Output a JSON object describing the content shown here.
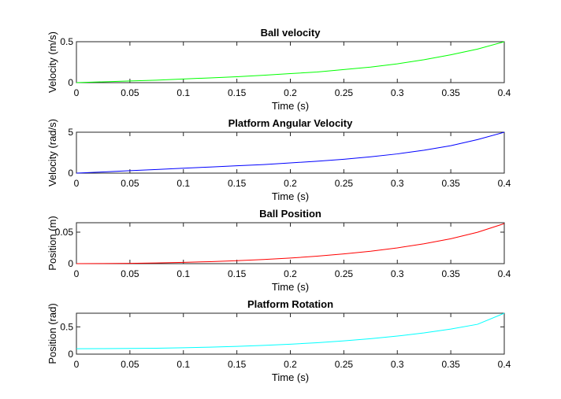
{
  "chart_data": [
    {
      "type": "line",
      "title": "Ball velocity",
      "xlabel": "Time (s)",
      "ylabel": "Velocity (m/s)",
      "xlim": [
        0,
        0.4
      ],
      "ylim": [
        0,
        0.5
      ],
      "xticks": [
        "0",
        "0.05",
        "0.1",
        "0.15",
        "0.2",
        "0.25",
        "0.3",
        "0.35",
        "0.4"
      ],
      "yticks": [
        "0",
        "0.5"
      ],
      "grid": false,
      "series": [
        {
          "color": "#00ff00",
          "x": [
            0,
            0.025,
            0.05,
            0.075,
            0.1,
            0.125,
            0.15,
            0.175,
            0.2,
            0.225,
            0.25,
            0.275,
            0.3,
            0.325,
            0.35,
            0.375,
            0.4
          ],
          "y": [
            0,
            0.01,
            0.02,
            0.03,
            0.045,
            0.058,
            0.072,
            0.09,
            0.11,
            0.13,
            0.16,
            0.19,
            0.23,
            0.28,
            0.34,
            0.41,
            0.5
          ]
        }
      ]
    },
    {
      "type": "line",
      "title": "Platform Angular Velocity",
      "xlabel": "Time (s)",
      "ylabel": "Velocity (rad/s)",
      "xlim": [
        0,
        0.4
      ],
      "ylim": [
        0,
        5
      ],
      "xticks": [
        "0",
        "0.05",
        "0.1",
        "0.15",
        "0.2",
        "0.25",
        "0.3",
        "0.35",
        "0.4"
      ],
      "yticks": [
        "0",
        "5"
      ],
      "grid": false,
      "series": [
        {
          "color": "#0000ff",
          "x": [
            0,
            0.025,
            0.05,
            0.075,
            0.1,
            0.125,
            0.15,
            0.175,
            0.2,
            0.225,
            0.25,
            0.275,
            0.3,
            0.325,
            0.35,
            0.375,
            0.4
          ],
          "y": [
            0,
            0.15,
            0.3,
            0.45,
            0.6,
            0.75,
            0.9,
            1.05,
            1.25,
            1.45,
            1.7,
            2.0,
            2.35,
            2.8,
            3.35,
            4.1,
            5.0
          ]
        }
      ]
    },
    {
      "type": "line",
      "title": "Ball Position",
      "xlabel": "Time (s)",
      "ylabel": "Position (m)",
      "xlim": [
        0,
        0.4
      ],
      "ylim": [
        0,
        0.065
      ],
      "xticks": [
        "0",
        "0.05",
        "0.1",
        "0.15",
        "0.2",
        "0.25",
        "0.3",
        "0.35",
        "0.4"
      ],
      "yticks": [
        "0",
        "0.05"
      ],
      "ytick_values": [
        0,
        0.05
      ],
      "grid": false,
      "series": [
        {
          "color": "#ff0000",
          "x": [
            0,
            0.025,
            0.05,
            0.075,
            0.1,
            0.125,
            0.15,
            0.175,
            0.2,
            0.225,
            0.25,
            0.275,
            0.3,
            0.325,
            0.35,
            0.375,
            0.4
          ],
          "y": [
            0,
            0.0001,
            0.0005,
            0.0011,
            0.002,
            0.0032,
            0.0047,
            0.0066,
            0.0089,
            0.0118,
            0.0154,
            0.0197,
            0.025,
            0.0315,
            0.0395,
            0.0498,
            0.0636
          ]
        }
      ]
    },
    {
      "type": "line",
      "title": "Platform Rotation",
      "xlabel": "Time (s)",
      "ylabel": "Position (rad)",
      "xlim": [
        0,
        0.4
      ],
      "ylim": [
        0,
        0.75
      ],
      "xticks": [
        "0",
        "0.05",
        "0.1",
        "0.15",
        "0.2",
        "0.25",
        "0.3",
        "0.35",
        "0.4"
      ],
      "yticks": [
        "0",
        "0.5"
      ],
      "ytick_values": [
        0,
        0.5
      ],
      "grid": false,
      "series": [
        {
          "color": "#00ffff",
          "x": [
            0,
            0.025,
            0.05,
            0.075,
            0.1,
            0.125,
            0.15,
            0.175,
            0.2,
            0.225,
            0.25,
            0.275,
            0.3,
            0.325,
            0.35,
            0.375,
            0.4
          ],
          "y": [
            0.1,
            0.101,
            0.104,
            0.109,
            0.117,
            0.128,
            0.142,
            0.16,
            0.182,
            0.21,
            0.243,
            0.283,
            0.331,
            0.389,
            0.46,
            0.547,
            0.75
          ]
        }
      ]
    }
  ]
}
